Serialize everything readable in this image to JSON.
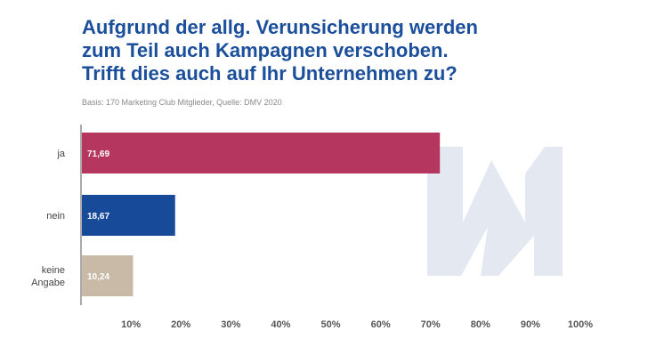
{
  "title_lines": [
    "Aufgrund der allg. Verunsicherung werden",
    "zum Teil auch Kampagnen verschoben.",
    "Trifft dies auch auf Ihr Unternehmen zu?"
  ],
  "source": "Basis: 170 Marketing Club Mitglieder, Quelle: DMV 2020",
  "colors": {
    "title": "#1b4f9c",
    "axis": "#555555",
    "watermark": "#e3e8f1"
  },
  "watermark_icon": "dmv-logo-icon",
  "chart_data": {
    "type": "bar",
    "orientation": "horizontal",
    "categories": [
      {
        "label_lines": [
          "ja"
        ],
        "value": 71.69,
        "value_label": "71,69",
        "color": "#b5365f"
      },
      {
        "label_lines": [
          "nein"
        ],
        "value": 18.67,
        "value_label": "18,67",
        "color": "#174b9a"
      },
      {
        "label_lines": [
          "keine",
          "Angabe"
        ],
        "value": 10.24,
        "value_label": "10,24",
        "color": "#c8baa6"
      }
    ],
    "xlim": [
      0,
      100
    ],
    "xticks": [
      10,
      20,
      30,
      40,
      50,
      60,
      70,
      80,
      90,
      100
    ],
    "xtick_labels": [
      "10%",
      "20%",
      "30%",
      "40%",
      "50%",
      "60%",
      "70%",
      "80%",
      "90%",
      "100%"
    ],
    "grid": false,
    "legend": "none"
  }
}
